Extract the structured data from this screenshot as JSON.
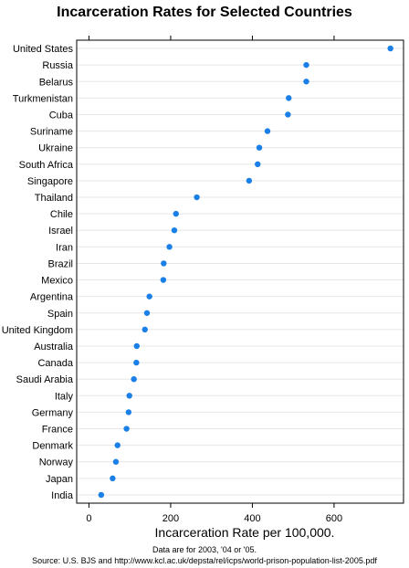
{
  "chart_data": {
    "type": "scatter",
    "title": "Incarceration Rates for Selected Countries",
    "xlabel": "Incarceration Rate per 100,000.",
    "ylabel": "",
    "xlim": [
      -30,
      770
    ],
    "xticks": [
      0,
      200,
      400,
      600
    ],
    "xtick_labels": [
      "0",
      "200",
      "400",
      "600"
    ],
    "grid": true,
    "point_color": "#1a7fe6",
    "categories": [
      "United States",
      "Russia",
      "Belarus",
      "Turkmenistan",
      "Cuba",
      "Suriname",
      "Ukraine",
      "South Africa",
      "Singapore",
      "Thailand",
      "Chile",
      "Israel",
      "Iran",
      "Brazil",
      "Mexico",
      "Argentina",
      "Spain",
      "United Kingdom",
      "Australia",
      "Canada",
      "Saudi Arabia",
      "Italy",
      "Germany",
      "France",
      "Denmark",
      "Norway",
      "Japan",
      "India"
    ],
    "values": [
      738,
      532,
      532,
      489,
      487,
      437,
      417,
      413,
      392,
      264,
      213,
      209,
      197,
      183,
      182,
      148,
      142,
      137,
      117,
      116,
      110,
      99,
      97,
      92,
      70,
      66,
      58,
      30
    ]
  },
  "footnotes": {
    "line1": "Data are for 2003, '04 or '05.",
    "line2": "Source: U.S. BJS and http://www.kcl.ac.uk/depsta/rel/icps/world-prison-population-list-2005.pdf"
  }
}
